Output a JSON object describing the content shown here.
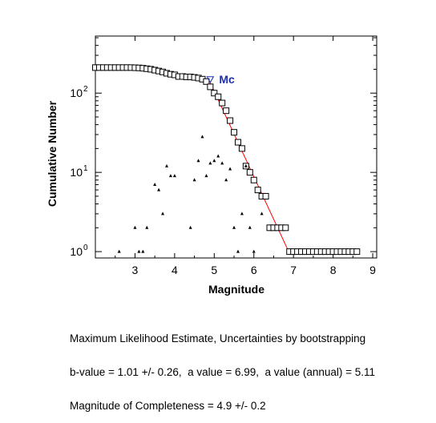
{
  "chart_data": {
    "type": "scatter",
    "xlabel": "Magnitude",
    "ylabel": "Cumulative Number",
    "xlim": [
      2.0,
      9.1
    ],
    "ylim_log10": [
      -0.08,
      2.72
    ],
    "y_scale": "log",
    "grid": false,
    "x_ticks": [
      3,
      4,
      5,
      6,
      7,
      8,
      9
    ],
    "y_ticks": [
      {
        "exp10": 0,
        "base": "10",
        "exp": "0"
      },
      {
        "exp10": 1,
        "base": "10",
        "exp": "1"
      },
      {
        "exp10": 2,
        "base": "10",
        "exp": "2"
      }
    ],
    "series": [
      {
        "marker": "open-square",
        "color": "#000000",
        "points": [
          [
            2.0,
            210
          ],
          [
            2.1,
            210
          ],
          [
            2.2,
            210
          ],
          [
            2.3,
            210
          ],
          [
            2.4,
            210
          ],
          [
            2.5,
            210
          ],
          [
            2.6,
            210
          ],
          [
            2.7,
            210
          ],
          [
            2.8,
            210
          ],
          [
            2.9,
            210
          ],
          [
            3.0,
            209
          ],
          [
            3.1,
            208
          ],
          [
            3.2,
            206
          ],
          [
            3.3,
            203
          ],
          [
            3.4,
            200
          ],
          [
            3.5,
            195
          ],
          [
            3.6,
            190
          ],
          [
            3.7,
            185
          ],
          [
            3.8,
            178
          ],
          [
            3.9,
            173
          ],
          [
            4.0,
            170
          ],
          [
            4.1,
            162
          ],
          [
            4.2,
            162
          ],
          [
            4.3,
            160
          ],
          [
            4.4,
            160
          ],
          [
            4.5,
            158
          ],
          [
            4.6,
            155
          ],
          [
            4.7,
            150
          ],
          [
            4.8,
            140
          ],
          [
            4.9,
            120
          ],
          [
            5.0,
            100
          ],
          [
            5.1,
            90
          ],
          [
            5.2,
            75
          ],
          [
            5.3,
            60
          ],
          [
            5.4,
            45
          ],
          [
            5.5,
            32
          ],
          [
            5.6,
            24
          ],
          [
            5.7,
            20
          ],
          [
            5.8,
            12
          ],
          [
            5.9,
            10
          ],
          [
            6.0,
            8
          ],
          [
            6.1,
            6
          ],
          [
            6.2,
            5
          ],
          [
            6.3,
            5
          ],
          [
            6.4,
            2
          ],
          [
            6.5,
            2
          ],
          [
            6.6,
            2
          ],
          [
            6.7,
            2
          ],
          [
            6.8,
            2
          ],
          [
            6.9,
            1
          ],
          [
            7.0,
            1
          ],
          [
            7.1,
            1
          ],
          [
            7.2,
            1
          ],
          [
            7.3,
            1
          ],
          [
            7.4,
            1
          ],
          [
            7.5,
            1
          ],
          [
            7.6,
            1
          ],
          [
            7.7,
            1
          ],
          [
            7.8,
            1
          ],
          [
            7.9,
            1
          ],
          [
            8.0,
            1
          ],
          [
            8.1,
            1
          ],
          [
            8.2,
            1
          ],
          [
            8.3,
            1
          ],
          [
            8.4,
            1
          ],
          [
            8.5,
            1
          ],
          [
            8.6,
            1
          ]
        ]
      },
      {
        "marker": "filled-triangle",
        "color": "#000000",
        "points": [
          [
            2.6,
            1
          ],
          [
            3.0,
            2
          ],
          [
            3.1,
            1
          ],
          [
            3.2,
            1
          ],
          [
            3.3,
            2
          ],
          [
            3.5,
            7
          ],
          [
            3.6,
            6
          ],
          [
            3.7,
            3
          ],
          [
            3.8,
            12
          ],
          [
            3.9,
            9
          ],
          [
            4.0,
            9
          ],
          [
            4.4,
            2
          ],
          [
            4.5,
            8
          ],
          [
            4.6,
            14
          ],
          [
            4.7,
            28
          ],
          [
            4.8,
            9
          ],
          [
            4.9,
            13
          ],
          [
            5.0,
            14
          ],
          [
            5.1,
            16
          ],
          [
            5.2,
            13
          ],
          [
            5.3,
            8
          ],
          [
            5.4,
            11
          ],
          [
            5.5,
            2
          ],
          [
            5.6,
            1
          ],
          [
            5.7,
            3
          ],
          [
            5.8,
            12
          ],
          [
            5.9,
            2
          ],
          [
            6.0,
            1
          ],
          [
            6.2,
            3
          ]
        ]
      },
      {
        "marker": "line",
        "color": "#ff0000",
        "points": [
          [
            4.9,
            135
          ],
          [
            6.9,
            0.95
          ]
        ]
      }
    ],
    "annotations": [
      {
        "text": "Mc",
        "marker": "open-triangle-down",
        "color": "#1c2fb0",
        "x": 4.9,
        "y": 150
      }
    ]
  },
  "caption": {
    "line1": "Maximum Likelihood Estimate, Uncertainties by bootstrapping",
    "line2": "b-value = 1.01 +/- 0.26,  a value = 6.99,  a value (annual) = 5.11",
    "line3": "Magnitude of Completeness = 4.9 +/- 0.2"
  }
}
